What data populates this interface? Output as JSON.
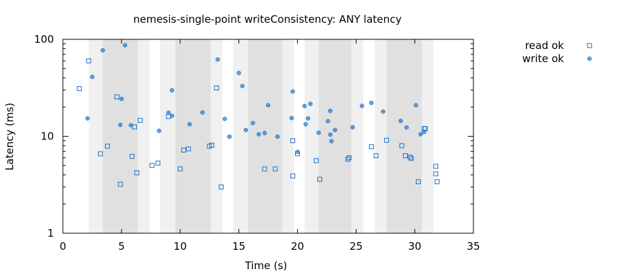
{
  "chart_data": {
    "type": "scatter",
    "title": "nemesis-single-point writeConsistency: ANY latency",
    "xlabel": "Time (s)",
    "ylabel": "Latency (ms)",
    "xlim": [
      0,
      35
    ],
    "ylim": [
      1,
      100
    ],
    "yscale": "log",
    "x_ticks": [
      0,
      5,
      10,
      15,
      20,
      25,
      30,
      35
    ],
    "y_ticks": [
      1,
      10,
      100
    ],
    "legend_position": "top-right-outside",
    "nemesis_bands": [
      {
        "start": 2.2,
        "end": 7.4,
        "core_start": 3.4,
        "core_end": 6.4
      },
      {
        "start": 8.3,
        "end": 13.6,
        "core_start": 9.6,
        "core_end": 12.6
      },
      {
        "start": 14.5,
        "end": 19.7,
        "core_start": 15.8,
        "core_end": 18.7
      },
      {
        "start": 20.6,
        "end": 25.6,
        "core_start": 21.8,
        "core_end": 24.6
      },
      {
        "start": 26.6,
        "end": 31.6,
        "core_start": 27.6,
        "core_end": 30.6
      }
    ],
    "series": [
      {
        "name": "read ok",
        "marker": "square",
        "color": "#1a72c8",
        "points": [
          [
            1.4,
            31
          ],
          [
            2.2,
            60
          ],
          [
            3.2,
            6.6
          ],
          [
            3.8,
            7.9
          ],
          [
            4.6,
            25.5
          ],
          [
            4.9,
            3.2
          ],
          [
            5.9,
            6.2
          ],
          [
            6.1,
            12.5
          ],
          [
            6.3,
            4.2
          ],
          [
            6.6,
            14.6
          ],
          [
            7.6,
            5.0
          ],
          [
            8.1,
            5.3
          ],
          [
            9.0,
            16.0
          ],
          [
            10.0,
            4.6
          ],
          [
            10.3,
            7.2
          ],
          [
            10.7,
            7.4
          ],
          [
            12.5,
            7.9
          ],
          [
            12.7,
            8.1
          ],
          [
            13.1,
            31.5
          ],
          [
            13.5,
            3.0
          ],
          [
            17.2,
            4.6
          ],
          [
            18.1,
            4.6
          ],
          [
            19.6,
            9.0
          ],
          [
            19.6,
            3.9
          ],
          [
            20.0,
            6.6
          ],
          [
            21.6,
            5.6
          ],
          [
            21.9,
            3.6
          ],
          [
            24.3,
            5.8
          ],
          [
            24.4,
            6.0
          ],
          [
            26.3,
            7.8
          ],
          [
            26.7,
            6.3
          ],
          [
            27.6,
            9.1
          ],
          [
            28.9,
            8.0
          ],
          [
            29.2,
            6.3
          ],
          [
            29.6,
            6.1
          ],
          [
            29.7,
            5.9
          ],
          [
            30.3,
            3.4
          ],
          [
            30.8,
            12.0
          ],
          [
            30.9,
            12.0
          ],
          [
            31.8,
            4.9
          ],
          [
            31.8,
            4.1
          ],
          [
            31.9,
            3.4
          ]
        ]
      },
      {
        "name": "write ok",
        "marker": "circle-plus",
        "color": "#1a72c8",
        "points": [
          [
            2.1,
            15.3
          ],
          [
            2.5,
            41
          ],
          [
            3.4,
            77
          ],
          [
            4.9,
            13.1
          ],
          [
            5.0,
            24.3
          ],
          [
            5.3,
            87
          ],
          [
            5.8,
            13.0
          ],
          [
            8.2,
            11.4
          ],
          [
            9.0,
            17.5
          ],
          [
            9.3,
            16.3
          ],
          [
            9.3,
            29.8
          ],
          [
            10.8,
            13.3
          ],
          [
            11.9,
            17.6
          ],
          [
            13.2,
            62
          ],
          [
            13.8,
            15.1
          ],
          [
            14.2,
            9.9
          ],
          [
            15.0,
            45
          ],
          [
            15.3,
            33
          ],
          [
            15.6,
            11.6
          ],
          [
            16.2,
            13.7
          ],
          [
            16.7,
            10.5
          ],
          [
            17.2,
            10.8
          ],
          [
            17.5,
            20.9
          ],
          [
            18.3,
            9.9
          ],
          [
            19.5,
            15.4
          ],
          [
            19.6,
            29.0
          ],
          [
            20.0,
            6.9
          ],
          [
            20.6,
            20.5
          ],
          [
            20.7,
            13.3
          ],
          [
            20.9,
            15.3
          ],
          [
            21.1,
            21.6
          ],
          [
            21.8,
            10.9
          ],
          [
            22.6,
            14.3
          ],
          [
            22.8,
            18.3
          ],
          [
            22.8,
            10.4
          ],
          [
            22.9,
            8.9
          ],
          [
            23.2,
            11.6
          ],
          [
            24.7,
            12.4
          ],
          [
            25.5,
            20.6
          ],
          [
            26.3,
            22.1
          ],
          [
            27.3,
            18.0
          ],
          [
            28.8,
            14.4
          ],
          [
            29.3,
            12.3
          ],
          [
            30.1,
            20.9
          ],
          [
            30.5,
            10.5
          ],
          [
            30.8,
            11.1
          ]
        ]
      }
    ]
  }
}
